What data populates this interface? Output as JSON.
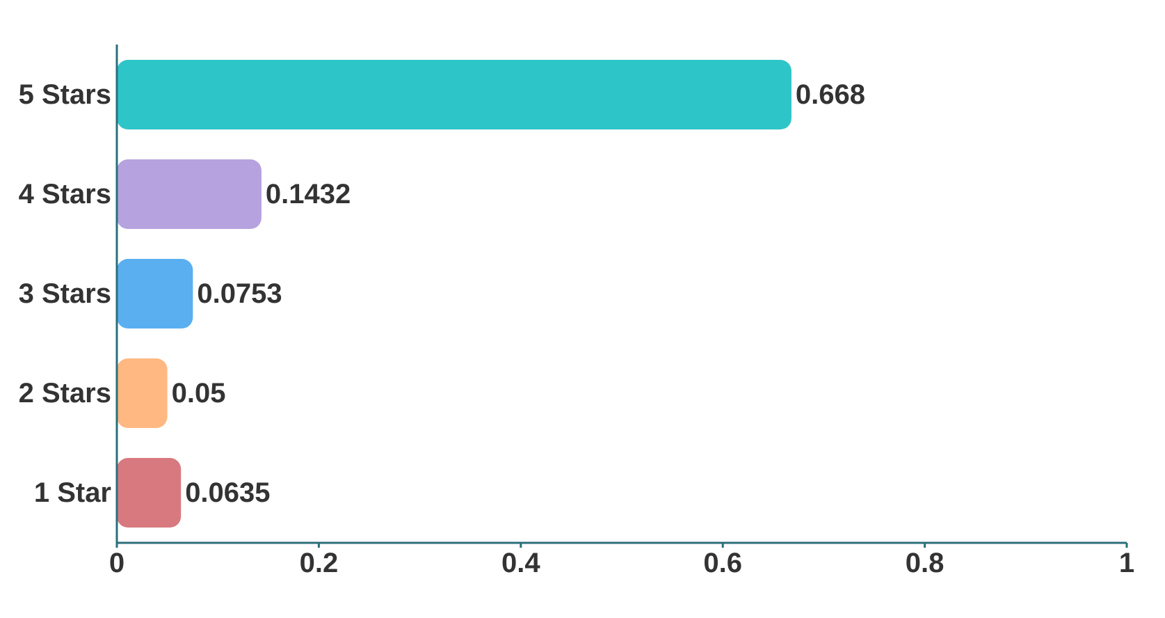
{
  "chart_data": {
    "type": "bar",
    "orientation": "horizontal",
    "categories": [
      "5 Stars",
      "4 Stars",
      "3 Stars",
      "2 Stars",
      "1 Star"
    ],
    "values": [
      0.668,
      0.1432,
      0.0753,
      0.05,
      0.0635
    ],
    "value_labels": [
      "0.668",
      "0.1432",
      "0.0753",
      "0.05",
      "0.0635"
    ],
    "colors": [
      "#2ec5c9",
      "#b5a2de",
      "#5aaff0",
      "#ffb882",
      "#d8797f"
    ],
    "xlim": [
      0,
      1
    ],
    "xticks": [
      0,
      0.2,
      0.4,
      0.6,
      0.8,
      1
    ],
    "xtick_labels": [
      "0",
      "0.2",
      "0.4",
      "0.6",
      "0.8",
      "1"
    ],
    "axis_color": "#2a6f7a",
    "title": "",
    "xlabel": "",
    "ylabel": "",
    "grid": false,
    "legend": "none"
  }
}
